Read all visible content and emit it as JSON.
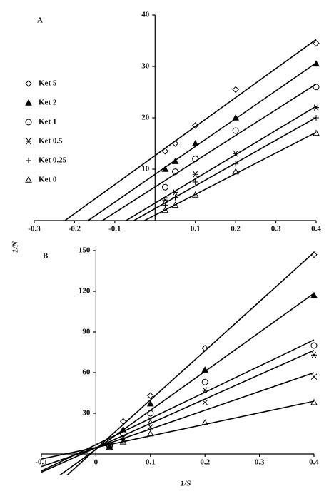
{
  "chart_data": [
    {
      "type": "line",
      "panel_label": "A",
      "ylabel": "1/N",
      "x": [
        0.025,
        0.05,
        0.1,
        0.2,
        0.4
      ],
      "series": [
        {
          "name": "Ket 5",
          "marker": "diamond",
          "color": "#000000",
          "values": [
            13.5,
            15,
            18.5,
            25.5,
            34.5
          ]
        },
        {
          "name": "Ket 2",
          "marker": "triangle-filled",
          "color": "#000000",
          "values": [
            10,
            11.5,
            15,
            20,
            30.5
          ]
        },
        {
          "name": "Ket 1",
          "marker": "circle",
          "color": "#000000",
          "values": [
            6.5,
            9.5,
            12,
            17.5,
            26
          ]
        },
        {
          "name": "Ket 0.5",
          "marker": "asterisk",
          "color": "#000000",
          "values": [
            4,
            5.5,
            9,
            13,
            22
          ]
        },
        {
          "name": "Ket 0.25",
          "marker": "plus",
          "color": "#000000",
          "values": [
            3,
            4.5,
            7.5,
            11,
            20
          ]
        },
        {
          "name": "Ket 0",
          "marker": "triangle",
          "color": "#000000",
          "values": [
            2,
            3,
            5,
            9.5,
            17
          ]
        }
      ],
      "xlim": [
        -0.3,
        0.4
      ],
      "xticks": [
        -0.3,
        -0.2,
        -0.1,
        0.1,
        0.2,
        0.3,
        0.4
      ],
      "ylim": [
        0,
        40
      ],
      "yticks": [
        10,
        20,
        30,
        40
      ],
      "legend": "left"
    },
    {
      "type": "line",
      "panel_label": "B",
      "xlabel": "1/S",
      "x": [
        0.025,
        0.05,
        0.1,
        0.2,
        0.4
      ],
      "series": [
        {
          "marker": "diamond",
          "color": "#000000",
          "values": [
            7,
            24,
            43,
            78,
            147
          ]
        },
        {
          "marker": "triangle-filled",
          "color": "#000000",
          "values": [
            6,
            18,
            37,
            62,
            117
          ]
        },
        {
          "marker": "circle",
          "color": "#000000",
          "values": [
            6,
            15,
            30,
            53,
            80
          ]
        },
        {
          "marker": "asterisk",
          "color": "#000000",
          "values": [
            5,
            12,
            25,
            47,
            73
          ]
        },
        {
          "marker": "x",
          "color": "#000000",
          "values": [
            5,
            10,
            20,
            38,
            57
          ]
        },
        {
          "marker": "triangle",
          "color": "#000000",
          "values": [
            5,
            9,
            15,
            23,
            38
          ]
        }
      ],
      "xlim": [
        -0.1,
        0.4
      ],
      "xticks": [
        -0.1,
        0,
        0.1,
        0.2,
        0.3,
        0.4
      ],
      "ylim": [
        0,
        150
      ],
      "yticks": [
        30,
        60,
        90,
        120,
        150
      ]
    }
  ]
}
